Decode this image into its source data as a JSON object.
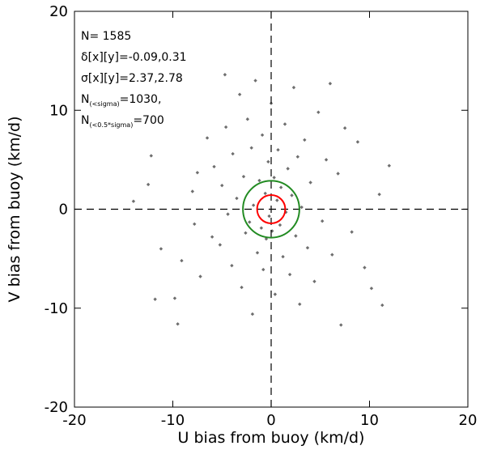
{
  "chart_data": {
    "type": "scatter",
    "title": "",
    "xlabel": "U bias from buoy (km/d)",
    "ylabel": "V bias from buoy (km/d)",
    "xlim": [
      -20,
      20
    ],
    "ylim": [
      -20,
      20
    ],
    "xticks": [
      -20,
      -10,
      0,
      10,
      20
    ],
    "yticks": [
      -20,
      -10,
      0,
      10,
      20
    ],
    "grid": false,
    "marker_color": "#6e6e6e",
    "reference_lines": {
      "x": 0,
      "y": 0,
      "style": "dashed"
    },
    "circles": [
      {
        "center": [
          0,
          0
        ],
        "radius": 2.87,
        "color": "#228b22"
      },
      {
        "center": [
          0,
          0
        ],
        "radius": 1.43,
        "color": "#ff0000"
      }
    ],
    "annotations": [
      {
        "main": "N= 1585"
      },
      {
        "main": "δ[x][y]=-0.09,0.31"
      },
      {
        "main": "σ[x][y]=2.37,2.78"
      },
      {
        "main": "N",
        "sub": "(<sigma)",
        "tail": "=1030,"
      },
      {
        "main": "N",
        "sub": "(<0.5*sigma)",
        "tail": "=700"
      }
    ],
    "points_summary": {
      "count": 1585,
      "mean_x": -0.09,
      "mean_y": 0.31,
      "std_x": 2.37,
      "std_y": 2.78
    },
    "points": [
      [
        -14.0,
        0.8
      ],
      [
        -12.5,
        2.5
      ],
      [
        -12.2,
        5.4
      ],
      [
        -11.8,
        -9.1
      ],
      [
        -11.2,
        -4.0
      ],
      [
        -9.5,
        -11.6
      ],
      [
        -9.8,
        -9.0
      ],
      [
        -9.1,
        -5.2
      ],
      [
        -8.0,
        1.8
      ],
      [
        -7.8,
        -1.5
      ],
      [
        -7.5,
        3.7
      ],
      [
        -7.2,
        -6.8
      ],
      [
        -6.5,
        7.2
      ],
      [
        -6.0,
        -2.8
      ],
      [
        -5.8,
        4.3
      ],
      [
        -5.2,
        -3.6
      ],
      [
        -5.0,
        2.4
      ],
      [
        -4.6,
        8.3
      ],
      [
        -4.7,
        13.6
      ],
      [
        -4.4,
        -0.5
      ],
      [
        -4.0,
        -5.7
      ],
      [
        -3.9,
        5.6
      ],
      [
        -3.5,
        1.1
      ],
      [
        -3.2,
        11.6
      ],
      [
        -3.0,
        -7.9
      ],
      [
        -2.8,
        3.3
      ],
      [
        -2.6,
        -2.4
      ],
      [
        -2.4,
        9.1
      ],
      [
        -2.2,
        -1.3
      ],
      [
        -2.0,
        6.2
      ],
      [
        -1.9,
        -10.6
      ],
      [
        -1.8,
        0.4
      ],
      [
        -1.6,
        13.0
      ],
      [
        -1.4,
        -4.4
      ],
      [
        -1.2,
        2.9
      ],
      [
        -1.0,
        -1.9
      ],
      [
        -0.9,
        7.5
      ],
      [
        -0.8,
        -6.1
      ],
      [
        -0.6,
        1.6
      ],
      [
        -0.5,
        -3.0
      ],
      [
        -0.3,
        4.8
      ],
      [
        -0.2,
        -0.7
      ],
      [
        0.0,
        10.7
      ],
      [
        0.1,
        -2.2
      ],
      [
        0.3,
        3.2
      ],
      [
        0.4,
        -8.6
      ],
      [
        0.6,
        0.9
      ],
      [
        0.7,
        6.0
      ],
      [
        0.9,
        -1.6
      ],
      [
        1.0,
        2.2
      ],
      [
        1.2,
        -4.8
      ],
      [
        1.4,
        8.6
      ],
      [
        1.5,
        -0.3
      ],
      [
        1.7,
        4.1
      ],
      [
        1.9,
        -6.6
      ],
      [
        2.1,
        1.4
      ],
      [
        2.3,
        12.3
      ],
      [
        2.5,
        -2.7
      ],
      [
        2.7,
        5.3
      ],
      [
        2.9,
        -9.6
      ],
      [
        3.1,
        0.2
      ],
      [
        3.4,
        7.0
      ],
      [
        3.7,
        -3.9
      ],
      [
        4.0,
        2.7
      ],
      [
        4.4,
        -7.3
      ],
      [
        4.8,
        9.8
      ],
      [
        5.2,
        -1.2
      ],
      [
        5.6,
        5.0
      ],
      [
        6.2,
        -4.6
      ],
      [
        6.8,
        3.6
      ],
      [
        7.1,
        -11.7
      ],
      [
        7.5,
        8.2
      ],
      [
        8.2,
        -2.3
      ],
      [
        8.8,
        6.8
      ],
      [
        9.5,
        -5.9
      ],
      [
        10.2,
        -8.0
      ],
      [
        11.0,
        1.5
      ],
      [
        11.3,
        -9.7
      ],
      [
        12.0,
        4.4
      ],
      [
        6.0,
        12.7
      ]
    ]
  }
}
